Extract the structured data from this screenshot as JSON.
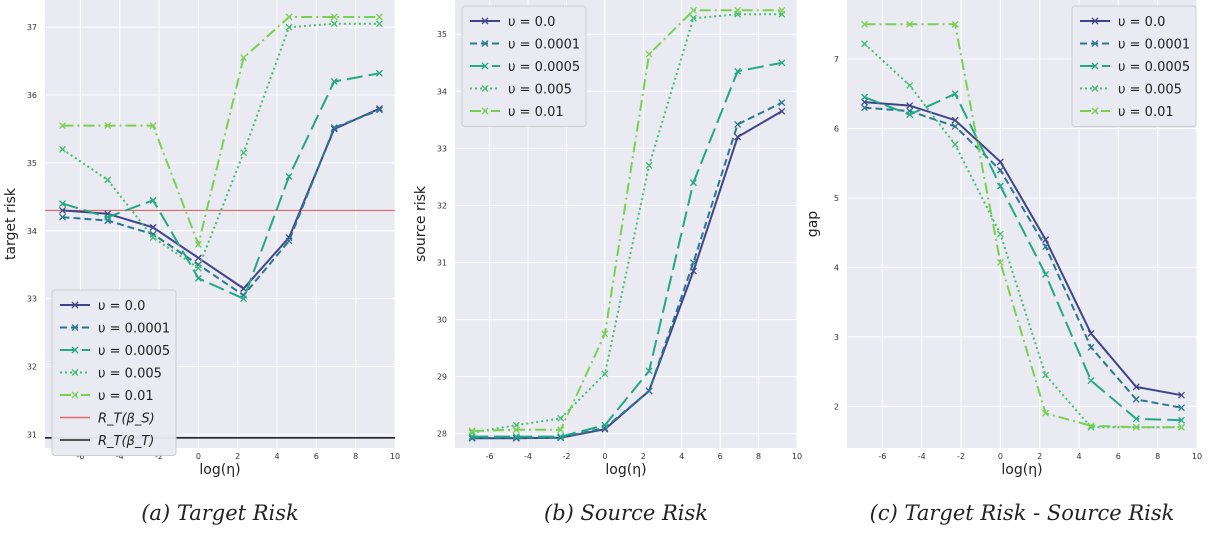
{
  "chart_data": [
    {
      "type": "line",
      "caption": "(a) Target Risk",
      "xlabel": "log(η)",
      "ylabel": "target risk",
      "xlim": [
        -7.8,
        10
      ],
      "ylim": [
        30.8,
        37.4
      ],
      "xticks": [
        -6,
        -4,
        -2,
        0,
        2,
        4,
        6,
        8,
        10
      ],
      "yticks": [
        31,
        32,
        33,
        34,
        35,
        36,
        37
      ],
      "grid": true,
      "legend_position": "lower-left",
      "x": [
        -6.91,
        -4.61,
        -2.3,
        0,
        2.3,
        4.61,
        6.91,
        9.21
      ],
      "series": [
        {
          "name": "υ = 0.0",
          "values": [
            34.3,
            34.25,
            34.05,
            33.6,
            33.15,
            33.9,
            35.5,
            35.8
          ]
        },
        {
          "name": "υ = 0.0001",
          "values": [
            34.2,
            34.15,
            33.95,
            33.5,
            33.05,
            33.85,
            35.52,
            35.78
          ]
        },
        {
          "name": "υ = 0.0005",
          "values": [
            34.4,
            34.2,
            34.45,
            33.3,
            33.0,
            34.8,
            36.2,
            36.32
          ]
        },
        {
          "name": "υ = 0.005",
          "values": [
            35.2,
            34.75,
            33.9,
            33.45,
            35.15,
            37.0,
            37.05,
            37.05
          ]
        },
        {
          "name": "υ = 0.01",
          "values": [
            35.55,
            35.55,
            35.55,
            33.8,
            36.55,
            37.15,
            37.15,
            37.15
          ]
        }
      ],
      "hlines": [
        {
          "name": "R_T(β_S)",
          "value": 34.3
        },
        {
          "name": "R_T(β_T)",
          "value": 30.95
        }
      ]
    },
    {
      "type": "line",
      "caption": "(b) Source Risk",
      "xlabel": "log(η)",
      "ylabel": "source risk",
      "xlim": [
        -7.8,
        10
      ],
      "ylim": [
        27.75,
        35.6
      ],
      "xticks": [
        -6,
        -4,
        -2,
        0,
        2,
        4,
        6,
        8,
        10
      ],
      "yticks": [
        28,
        29,
        30,
        31,
        32,
        33,
        34,
        35
      ],
      "grid": true,
      "legend_position": "top-left",
      "x": [
        -6.91,
        -4.61,
        -2.3,
        0,
        2.3,
        4.61,
        6.91,
        9.21
      ],
      "series": [
        {
          "name": "υ = 0.0",
          "values": [
            27.92,
            27.92,
            27.93,
            28.08,
            28.75,
            30.85,
            33.2,
            33.65
          ]
        },
        {
          "name": "υ = 0.0001",
          "values": [
            27.93,
            27.93,
            27.93,
            28.1,
            28.75,
            31.0,
            33.42,
            33.8
          ]
        },
        {
          "name": "υ = 0.0005",
          "values": [
            27.95,
            27.95,
            27.95,
            28.15,
            29.1,
            32.4,
            34.35,
            34.5
          ]
        },
        {
          "name": "υ = 0.005",
          "values": [
            28.02,
            28.15,
            28.27,
            29.05,
            32.7,
            35.28,
            35.35,
            35.35
          ]
        },
        {
          "name": "υ = 0.01",
          "values": [
            28.05,
            28.07,
            28.07,
            29.75,
            34.65,
            35.42,
            35.42,
            35.42
          ]
        }
      ]
    },
    {
      "type": "line",
      "caption": "(c) Target Risk - Source Risk",
      "xlabel": "log(η)",
      "ylabel": "gap",
      "xlim": [
        -7.8,
        10
      ],
      "ylim": [
        1.4,
        7.85
      ],
      "xticks": [
        -6,
        -4,
        -2,
        0,
        2,
        4,
        6,
        8,
        10
      ],
      "yticks": [
        2,
        3,
        4,
        5,
        6,
        7
      ],
      "grid": true,
      "legend_position": "top-right",
      "x": [
        -6.91,
        -4.61,
        -2.3,
        0,
        2.3,
        4.61,
        6.91,
        9.21
      ],
      "series": [
        {
          "name": "υ = 0.0",
          "values": [
            6.38,
            6.33,
            6.12,
            5.52,
            4.4,
            3.05,
            2.28,
            2.16
          ]
        },
        {
          "name": "υ = 0.0001",
          "values": [
            6.3,
            6.25,
            6.03,
            5.4,
            4.3,
            2.85,
            2.1,
            1.98
          ]
        },
        {
          "name": "υ = 0.0005",
          "values": [
            6.45,
            6.2,
            6.5,
            5.17,
            3.9,
            2.37,
            1.82,
            1.8
          ]
        },
        {
          "name": "υ = 0.005",
          "values": [
            7.22,
            6.62,
            5.77,
            4.48,
            2.45,
            1.7,
            1.7,
            1.7
          ]
        },
        {
          "name": "υ = 0.01",
          "values": [
            7.5,
            7.5,
            7.5,
            4.07,
            1.9,
            1.72,
            1.7,
            1.7
          ]
        }
      ]
    }
  ],
  "series_colors": [
    "#414487",
    "#2a788e",
    "#22a884",
    "#44bf70",
    "#7ad151"
  ],
  "series_dash": [
    "",
    "7,4",
    "16,6",
    "2,3",
    "11,4,2,4"
  ],
  "hline_colors": [
    "#e06868",
    "#222222"
  ],
  "plot_bg": "#eaeaf2",
  "grid_color": "#ffffff"
}
